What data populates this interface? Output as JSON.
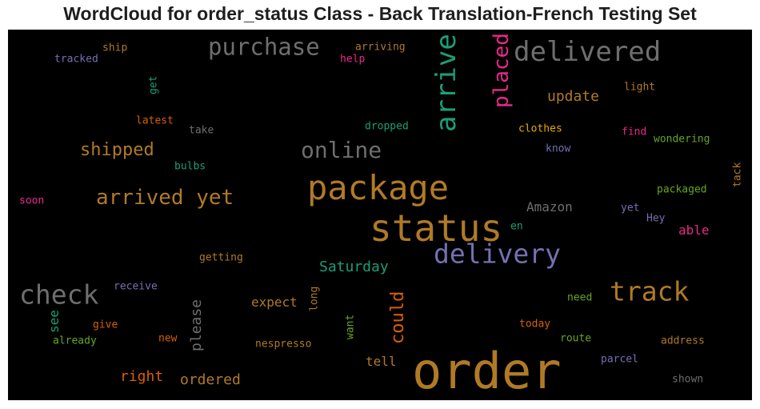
{
  "chart_data": {
    "type": "wordcloud",
    "title": "WordCloud for order_status Class - Back Translation-French Testing Set",
    "background": "#000000",
    "words": [
      {
        "text": "order",
        "color": "#b07a25",
        "weight": 62,
        "vertical": false
      },
      {
        "text": "status",
        "color": "#b07a25",
        "weight": 46,
        "vertical": false
      },
      {
        "text": "package",
        "color": "#b07a25",
        "weight": 42,
        "vertical": false
      },
      {
        "text": "arrive",
        "color": "#1b9e77",
        "weight": 34,
        "vertical": true
      },
      {
        "text": "delivered",
        "color": "#6e6e6e",
        "weight": 34,
        "vertical": false
      },
      {
        "text": "delivery",
        "color": "#7570b3",
        "weight": 33,
        "vertical": false
      },
      {
        "text": "check",
        "color": "#6e6e6e",
        "weight": 33,
        "vertical": false
      },
      {
        "text": "track",
        "color": "#b07a25",
        "weight": 33,
        "vertical": false
      },
      {
        "text": "purchase",
        "color": "#6e6e6e",
        "weight": 29,
        "vertical": false
      },
      {
        "text": "online",
        "color": "#6e6e6e",
        "weight": 28,
        "vertical": false
      },
      {
        "text": "arrived yet",
        "color": "#b07a25",
        "weight": 26,
        "vertical": false
      },
      {
        "text": "placed",
        "color": "#e7298a",
        "weight": 26,
        "vertical": true
      },
      {
        "text": "shipped",
        "color": "#b07a25",
        "weight": 22,
        "vertical": false
      },
      {
        "text": "could",
        "color": "#d95f02",
        "weight": 22,
        "vertical": true
      },
      {
        "text": "please",
        "color": "#6e6e6e",
        "weight": 18,
        "vertical": true
      },
      {
        "text": "update",
        "color": "#b07a25",
        "weight": 18,
        "vertical": false
      },
      {
        "text": "Saturday",
        "color": "#1b9e77",
        "weight": 18,
        "vertical": false
      },
      {
        "text": "ordered",
        "color": "#b07a25",
        "weight": 18,
        "vertical": false
      },
      {
        "text": "right",
        "color": "#d95f02",
        "weight": 18,
        "vertical": false
      },
      {
        "text": "Amazon",
        "color": "#6e6e6e",
        "weight": 16,
        "vertical": false
      },
      {
        "text": "expect",
        "color": "#b07a25",
        "weight": 16,
        "vertical": false
      },
      {
        "text": "able",
        "color": "#e7298a",
        "weight": 16,
        "vertical": false
      },
      {
        "text": "tell",
        "color": "#b07a25",
        "weight": 16,
        "vertical": false
      },
      {
        "text": "see",
        "color": "#1b9e77",
        "weight": 16,
        "vertical": true
      },
      {
        "text": "ship",
        "color": "#b07a25",
        "weight": 13,
        "vertical": false
      },
      {
        "text": "tracked",
        "color": "#7570b3",
        "weight": 13,
        "vertical": false
      },
      {
        "text": "arriving",
        "color": "#b07a25",
        "weight": 13,
        "vertical": false
      },
      {
        "text": "help",
        "color": "#e7298a",
        "weight": 13,
        "vertical": false
      },
      {
        "text": "get",
        "color": "#1b9e77",
        "weight": 13,
        "vertical": true
      },
      {
        "text": "light",
        "color": "#b07a25",
        "weight": 13,
        "vertical": false
      },
      {
        "text": "latest",
        "color": "#d95f02",
        "weight": 13,
        "vertical": false
      },
      {
        "text": "take",
        "color": "#6e6e6e",
        "weight": 13,
        "vertical": false
      },
      {
        "text": "dropped",
        "color": "#1b9e77",
        "weight": 13,
        "vertical": false
      },
      {
        "text": "clothes",
        "color": "#e6ab02",
        "weight": 13,
        "vertical": false
      },
      {
        "text": "find",
        "color": "#e7298a",
        "weight": 13,
        "vertical": false
      },
      {
        "text": "wondering",
        "color": "#66a61e",
        "weight": 13,
        "vertical": false
      },
      {
        "text": "know",
        "color": "#7570b3",
        "weight": 13,
        "vertical": false
      },
      {
        "text": "bulbs",
        "color": "#1b9e77",
        "weight": 13,
        "vertical": false
      },
      {
        "text": "tack",
        "color": "#b07a25",
        "weight": 13,
        "vertical": true
      },
      {
        "text": "packaged",
        "color": "#66a61e",
        "weight": 13,
        "vertical": false
      },
      {
        "text": "soon",
        "color": "#e7298a",
        "weight": 13,
        "vertical": false
      },
      {
        "text": "yet",
        "color": "#7570b3",
        "weight": 13,
        "vertical": false
      },
      {
        "text": "Hey",
        "color": "#7570b3",
        "weight": 13,
        "vertical": false
      },
      {
        "text": "en",
        "color": "#1b9e77",
        "weight": 13,
        "vertical": false
      },
      {
        "text": "getting",
        "color": "#b07a25",
        "weight": 13,
        "vertical": false
      },
      {
        "text": "receive",
        "color": "#7570b3",
        "weight": 13,
        "vertical": false
      },
      {
        "text": "long",
        "color": "#b07a25",
        "weight": 13,
        "vertical": true
      },
      {
        "text": "need",
        "color": "#66a61e",
        "weight": 13,
        "vertical": false
      },
      {
        "text": "give",
        "color": "#d95f02",
        "weight": 13,
        "vertical": false
      },
      {
        "text": "want",
        "color": "#66a61e",
        "weight": 13,
        "vertical": true
      },
      {
        "text": "today",
        "color": "#d95f02",
        "weight": 13,
        "vertical": false
      },
      {
        "text": "already",
        "color": "#66a61e",
        "weight": 13,
        "vertical": false
      },
      {
        "text": "new",
        "color": "#d95f02",
        "weight": 13,
        "vertical": false
      },
      {
        "text": "nespresso",
        "color": "#b07a25",
        "weight": 13,
        "vertical": false
      },
      {
        "text": "route",
        "color": "#66a61e",
        "weight": 13,
        "vertical": false
      },
      {
        "text": "address",
        "color": "#b07a25",
        "weight": 13,
        "vertical": false
      },
      {
        "text": "parcel",
        "color": "#7570b3",
        "weight": 13,
        "vertical": false
      },
      {
        "text": "shown",
        "color": "#6e6e6e",
        "weight": 13,
        "vertical": false
      }
    ]
  }
}
